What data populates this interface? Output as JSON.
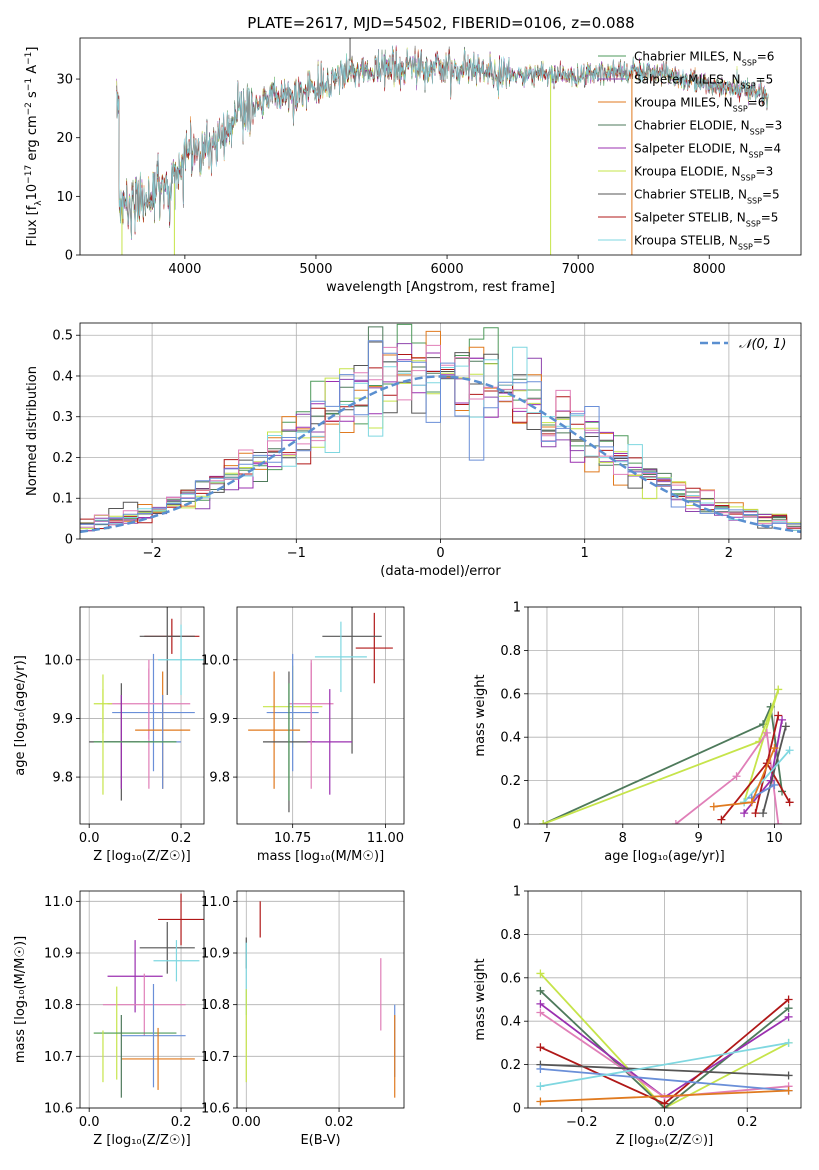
{
  "figure_title": "PLATE=2617, MJD=54502, FIBERID=0106, z=0.088",
  "colors": {
    "chabrier_miles": "#4e9a5b",
    "salpeter_miles": "#8e44ad",
    "kroupa_miles": "#e07a1f",
    "chabrier_elodie": "#4e7a5b",
    "salpeter_elodie": "#9b30b0",
    "kroupa_elodie": "#c6e44a",
    "chabrier_stelib": "#555555",
    "salpeter_stelib": "#b01818",
    "kroupa_stelib": "#7fd7e0",
    "pink": "#e07fb8",
    "blue": "#6a8fd8",
    "grid": "#b0b0b0",
    "normal_curve": "#5a8fd0"
  },
  "chart_data": [
    {
      "id": "spectrum",
      "type": "line",
      "title": "PLATE=2617, MJD=54502, FIBERID=0106, z=0.088",
      "xlabel": "wavelength [Angstrom, rest frame]",
      "ylabel_parts": [
        "Flux [f",
        "λ",
        "10",
        "−17",
        " erg cm",
        "−2",
        " s",
        "−1",
        " A",
        "−1",
        "]"
      ],
      "xlim": [
        3200,
        8700
      ],
      "ylim": [
        0,
        37
      ],
      "xticks": [
        4000,
        5000,
        6000,
        7000,
        8000
      ],
      "yticks": [
        0,
        10,
        20,
        30
      ],
      "grid": false,
      "legend_loc": "upper right",
      "legend": [
        {
          "name": "Chabrier MILES",
          "n": "6",
          "color": "#4e9a5b"
        },
        {
          "name": "Salpeter MILES",
          "n": "5",
          "color": "#8e44ad"
        },
        {
          "name": "Kroupa MILES",
          "n": "6",
          "color": "#e07a1f"
        },
        {
          "name": "Chabrier ELODIE",
          "n": "3",
          "color": "#4e7a5b"
        },
        {
          "name": "Salpeter ELODIE",
          "n": "4",
          "color": "#9b30b0"
        },
        {
          "name": "Kroupa ELODIE",
          "n": "3",
          "color": "#c6e44a"
        },
        {
          "name": "Chabrier STELIB",
          "n": "5",
          "color": "#555555"
        },
        {
          "name": "Salpeter STELIB",
          "n": "5",
          "color": "#b01818"
        },
        {
          "name": "Kroupa STELIB",
          "n": "5",
          "color": "#7fd7e0"
        }
      ],
      "continuum_x": [
        3500,
        3700,
        3900,
        4000,
        4300,
        4400,
        4700,
        5000,
        5200,
        5500,
        5800,
        6000,
        6300,
        6600,
        7000,
        7300,
        7600,
        7900,
        8200,
        8450
      ],
      "continuum_y": [
        8,
        10,
        11,
        17,
        19,
        24,
        27,
        28,
        31,
        31.5,
        32,
        32,
        31,
        31,
        30.5,
        31.5,
        31,
        29.5,
        28.5,
        27
      ],
      "spikes": [
        {
          "x": 5260,
          "ymax": 37
        },
        {
          "x": 6790,
          "ymin": 0
        },
        {
          "x": 7410,
          "ymin": 0
        },
        {
          "x": 3920,
          "ymin": 0
        },
        {
          "x": 3520,
          "ymin": 0
        }
      ]
    },
    {
      "id": "residual_hist",
      "type": "step",
      "xlabel": "(data-model)/error",
      "ylabel": "Normed distribution",
      "xlim": [
        -2.5,
        2.5
      ],
      "ylim": [
        0,
        0.53
      ],
      "xticks": [
        -2,
        -1,
        0,
        1,
        2
      ],
      "yticks": [
        0,
        0.1,
        0.2,
        0.3,
        0.4,
        0.5
      ],
      "grid": true,
      "legend_loc": "upper right",
      "normal_label": "𝒩(0, 1)",
      "bin_width": 0.1
    },
    {
      "id": "age_vs_Z",
      "type": "errorbar",
      "xlabel": "Z [log₁₀(Z/Z☉)]",
      "ylabel": "age  [log₁₀(age/yr)]",
      "xlim": [
        -0.02,
        0.25
      ],
      "ylim": [
        9.72,
        10.09
      ],
      "xticks": [
        0.0,
        0.2
      ],
      "xticklabels": [
        "0.0",
        "0.2"
      ],
      "yticks": [
        9.8,
        9.9,
        10.0
      ],
      "yticklabels": [
        "9.8",
        "9.9",
        "10.0"
      ],
      "grid": true,
      "points": [
        {
          "x": 0.18,
          "y": 10.04,
          "xerr": 0.06,
          "yerr": 0.03,
          "color": "#b01818"
        },
        {
          "x": 0.17,
          "y": 10.04,
          "xerr": 0.06,
          "yerr": 0.1,
          "color": "#555555"
        },
        {
          "x": 0.2,
          "y": 10.0,
          "xerr": 0.05,
          "yerr": 0.06,
          "color": "#7fd7e0"
        },
        {
          "x": 0.13,
          "y": 9.89,
          "xerr": 0.0,
          "yerr": 0.11,
          "color": "#e07fb8"
        },
        {
          "x": 0.14,
          "y": 9.91,
          "xerr": 0.09,
          "yerr": 0.1,
          "color": "#6a8fd8"
        },
        {
          "x": 0.13,
          "y": 9.925,
          "xerr": 0.09,
          "yerr": 0.06,
          "color": "#e07fb8"
        },
        {
          "x": 0.03,
          "y": 9.925,
          "xerr": 0.02,
          "yerr": 0.05,
          "color": "#c6e44a"
        },
        {
          "x": 0.16,
          "y": 9.88,
          "xerr": 0.06,
          "yerr": 0.1,
          "color": "#e07a1f"
        },
        {
          "x": 0.07,
          "y": 9.86,
          "xerr": 0.07,
          "yerr": 0.1,
          "color": "#555555"
        },
        {
          "x": 0.07,
          "y": 9.86,
          "xerr": 0.04,
          "yerr": 0.08,
          "color": "#9b30b0"
        },
        {
          "x": 0.16,
          "y": 9.86,
          "xerr": 0.04,
          "yerr": 0.08,
          "color": "#6a8fd8"
        },
        {
          "x": 0.1,
          "y": 9.86,
          "xerr": 0.09,
          "yerr": 0.0,
          "color": "#4e9a5b"
        },
        {
          "x": 0.03,
          "y": 9.86,
          "xerr": 0.0,
          "yerr": 0.09,
          "color": "#c6e44a"
        }
      ]
    },
    {
      "id": "age_vs_mass",
      "type": "errorbar",
      "xlabel": "mass [log₁₀(M/M☉)]",
      "ylabel": "",
      "xlim": [
        10.6,
        11.05
      ],
      "ylim": [
        9.72,
        10.09
      ],
      "xticks": [
        10.75,
        11.0
      ],
      "xticklabels": [
        "10.75",
        "11.00"
      ],
      "yticks": [
        9.8,
        9.9,
        10.0
      ],
      "yticklabels": [
        "9.8",
        "9.9",
        "10.0"
      ],
      "grid": true,
      "points": [
        {
          "x": 10.97,
          "y": 10.02,
          "xerr": 0.05,
          "yerr": 0.06,
          "color": "#b01818"
        },
        {
          "x": 10.91,
          "y": 10.04,
          "xerr": 0.08,
          "yerr": 0.2,
          "color": "#555555"
        },
        {
          "x": 10.88,
          "y": 10.005,
          "xerr": 0.07,
          "yerr": 0.06,
          "color": "#7fd7e0"
        },
        {
          "x": 10.8,
          "y": 9.925,
          "xerr": 0.06,
          "yerr": 0.07,
          "color": "#e07fb8"
        },
        {
          "x": 10.75,
          "y": 9.92,
          "xerr": 0.08,
          "yerr": 0.07,
          "color": "#c6e44a"
        },
        {
          "x": 10.75,
          "y": 9.91,
          "xerr": 0.07,
          "yerr": 0.1,
          "color": "#6a8fd8"
        },
        {
          "x": 10.7,
          "y": 9.88,
          "xerr": 0.07,
          "yerr": 0.1,
          "color": "#e07a1f"
        },
        {
          "x": 10.74,
          "y": 9.86,
          "xerr": 0.07,
          "yerr": 0.12,
          "color": "#555555"
        },
        {
          "x": 10.85,
          "y": 9.86,
          "xerr": 0.06,
          "yerr": 0.09,
          "color": "#9b30b0"
        },
        {
          "x": 10.74,
          "y": 9.86,
          "xerr": 0.0,
          "yerr": 0.1,
          "color": "#4e9a5b"
        },
        {
          "x": 10.8,
          "y": 9.89,
          "xerr": 0.0,
          "yerr": 0.11,
          "color": "#e07fb8"
        }
      ]
    },
    {
      "id": "massweight_vs_age",
      "type": "line",
      "xlabel": "age  [log₁₀(age/yr)]",
      "ylabel": "mass weight",
      "xlim": [
        6.75,
        10.35
      ],
      "ylim": [
        0,
        1.0
      ],
      "xticks": [
        7,
        8,
        9,
        10
      ],
      "yticks": [
        0,
        0.2,
        0.4,
        0.6,
        0.8,
        1.0
      ],
      "grid": true,
      "series": [
        {
          "color": "#4e7a5b",
          "x": [
            6.95,
            9.85,
            9.95,
            10.1
          ],
          "y": [
            0.0,
            0.46,
            0.54,
            0.15
          ]
        },
        {
          "color": "#c6e44a",
          "x": [
            6.95,
            9.8,
            10.05,
            9.6
          ],
          "y": [
            0.0,
            0.38,
            0.62,
            0.1
          ]
        },
        {
          "color": "#e07fb8",
          "x": [
            8.7,
            9.5,
            9.9,
            10.05
          ],
          "y": [
            0.0,
            0.22,
            0.42,
            0.0
          ]
        },
        {
          "color": "#9b30b0",
          "x": [
            9.6,
            9.95,
            10.1
          ],
          "y": [
            0.05,
            0.2,
            0.48
          ]
        },
        {
          "color": "#b01818",
          "x": [
            9.3,
            9.9,
            10.2
          ],
          "y": [
            0.02,
            0.28,
            0.1
          ]
        },
        {
          "color": "#b01818",
          "x": [
            9.75,
            10.05
          ],
          "y": [
            0.05,
            0.5
          ]
        },
        {
          "color": "#555555",
          "x": [
            9.85,
            10.15
          ],
          "y": [
            0.05,
            0.45
          ]
        },
        {
          "color": "#7fd7e0",
          "x": [
            9.6,
            10.2
          ],
          "y": [
            0.1,
            0.34
          ]
        },
        {
          "color": "#6a8fd8",
          "x": [
            9.7,
            10.0
          ],
          "y": [
            0.12,
            0.18
          ]
        },
        {
          "color": "#e07a1f",
          "x": [
            9.2,
            9.7,
            10.0
          ],
          "y": [
            0.08,
            0.1,
            0.35
          ]
        }
      ]
    },
    {
      "id": "mass_vs_Z",
      "type": "errorbar",
      "xlabel": "Z [log₁₀(Z/Z☉)]",
      "ylabel": "mass [log₁₀(M/M☉)]",
      "xlim": [
        -0.02,
        0.25
      ],
      "ylim": [
        10.6,
        11.02
      ],
      "xticks": [
        0.0,
        0.2
      ],
      "xticklabels": [
        "0.0",
        "0.2"
      ],
      "yticks": [
        10.6,
        10.7,
        10.8,
        10.9,
        11.0
      ],
      "yticklabels": [
        "10.6",
        "10.7",
        "10.8",
        "10.9",
        "11.0"
      ],
      "grid": true,
      "points": [
        {
          "x": 0.2,
          "y": 10.965,
          "xerr": 0.05,
          "yerr": 0.05,
          "color": "#b01818"
        },
        {
          "x": 0.17,
          "y": 10.91,
          "xerr": 0.06,
          "yerr": 0.05,
          "color": "#555555"
        },
        {
          "x": 0.19,
          "y": 10.885,
          "xerr": 0.05,
          "yerr": 0.04,
          "color": "#7fd7e0"
        },
        {
          "x": 0.1,
          "y": 10.855,
          "xerr": 0.06,
          "yerr": 0.07,
          "color": "#9b30b0"
        },
        {
          "x": 0.12,
          "y": 10.8,
          "xerr": 0.09,
          "yerr": 0.06,
          "color": "#e07fb8"
        },
        {
          "x": 0.06,
          "y": 10.745,
          "xerr": 0.05,
          "yerr": 0.09,
          "color": "#c6e44a"
        },
        {
          "x": 0.1,
          "y": 10.745,
          "xerr": 0.09,
          "yerr": 0.0,
          "color": "#4e9a5b"
        },
        {
          "x": 0.14,
          "y": 10.74,
          "xerr": 0.07,
          "yerr": 0.1,
          "color": "#6a8fd8"
        },
        {
          "x": 0.15,
          "y": 10.695,
          "xerr": 0.08,
          "yerr": 0.06,
          "color": "#e07a1f"
        },
        {
          "x": 0.07,
          "y": 10.7,
          "xerr": 0.0,
          "yerr": 0.08,
          "color": "#4e7a5b"
        },
        {
          "x": 0.03,
          "y": 10.7,
          "xerr": 0.0,
          "yerr": 0.05,
          "color": "#c6e44a"
        }
      ]
    },
    {
      "id": "mass_vs_ebv",
      "type": "errorbar",
      "xlabel": "E(B-V)",
      "ylabel": "",
      "xlim": [
        -0.002,
        0.034
      ],
      "ylim": [
        10.6,
        11.02
      ],
      "xticks": [
        0.0,
        0.02
      ],
      "xticklabels": [
        "0.00",
        "0.02"
      ],
      "yticks": [
        10.6,
        10.7,
        10.8,
        10.9,
        11.0
      ],
      "yticklabels": [
        "10.6",
        "10.7",
        "10.8",
        "10.9",
        "11.0"
      ],
      "grid": true,
      "points": [
        {
          "x": 0.003,
          "y": 10.965,
          "xerr": 0,
          "yerr": 0.035,
          "color": "#b01818"
        },
        {
          "x": 0.0,
          "y": 10.9,
          "xerr": 0,
          "yerr": 0.03,
          "color": "#555555"
        },
        {
          "x": 0.0,
          "y": 10.85,
          "xerr": 0,
          "yerr": 0.07,
          "color": "#7fd7e0"
        },
        {
          "x": 0.0,
          "y": 10.74,
          "xerr": 0,
          "yerr": 0.09,
          "color": "#c6e44a"
        },
        {
          "x": 0.029,
          "y": 10.82,
          "xerr": 0,
          "yerr": 0.07,
          "color": "#e07fb8"
        },
        {
          "x": 0.032,
          "y": 10.73,
          "xerr": 0,
          "yerr": 0.07,
          "color": "#6a8fd8"
        },
        {
          "x": 0.032,
          "y": 10.7,
          "xerr": 0,
          "yerr": 0.08,
          "color": "#e07a1f"
        }
      ]
    },
    {
      "id": "massweight_vs_Z",
      "type": "line",
      "xlabel": "Z [log₁₀(Z/Z☉)]",
      "ylabel": "mass weight",
      "xlim": [
        -0.33,
        0.33
      ],
      "ylim": [
        0,
        1.0
      ],
      "xticks": [
        -0.2,
        0.0,
        0.2
      ],
      "xticklabels": [
        "−0.2",
        "0.0",
        "0.2"
      ],
      "yticks": [
        0,
        0.2,
        0.4,
        0.6,
        0.8,
        1.0
      ],
      "grid": true,
      "series": [
        {
          "color": "#c6e44a",
          "x": [
            -0.3,
            0.0,
            0.3
          ],
          "y": [
            0.62,
            0.0,
            0.3
          ]
        },
        {
          "color": "#4e7a5b",
          "x": [
            -0.3,
            0.0,
            0.3
          ],
          "y": [
            0.54,
            0.0,
            0.46
          ]
        },
        {
          "color": "#9b30b0",
          "x": [
            -0.3,
            0.0,
            0.3
          ],
          "y": [
            0.48,
            0.05,
            0.42
          ]
        },
        {
          "color": "#e07fb8",
          "x": [
            -0.3,
            0.0,
            0.3
          ],
          "y": [
            0.44,
            0.05,
            0.1
          ]
        },
        {
          "color": "#b01818",
          "x": [
            -0.3,
            0.0,
            0.3
          ],
          "y": [
            0.28,
            0.02,
            0.5
          ]
        },
        {
          "color": "#555555",
          "x": [
            -0.3,
            0.3
          ],
          "y": [
            0.2,
            0.15
          ]
        },
        {
          "color": "#6a8fd8",
          "x": [
            -0.3,
            0.3
          ],
          "y": [
            0.18,
            0.08
          ]
        },
        {
          "color": "#7fd7e0",
          "x": [
            -0.3,
            0.3
          ],
          "y": [
            0.1,
            0.3
          ]
        },
        {
          "color": "#e07a1f",
          "x": [
            -0.3,
            0.3
          ],
          "y": [
            0.03,
            0.08
          ]
        }
      ]
    }
  ]
}
